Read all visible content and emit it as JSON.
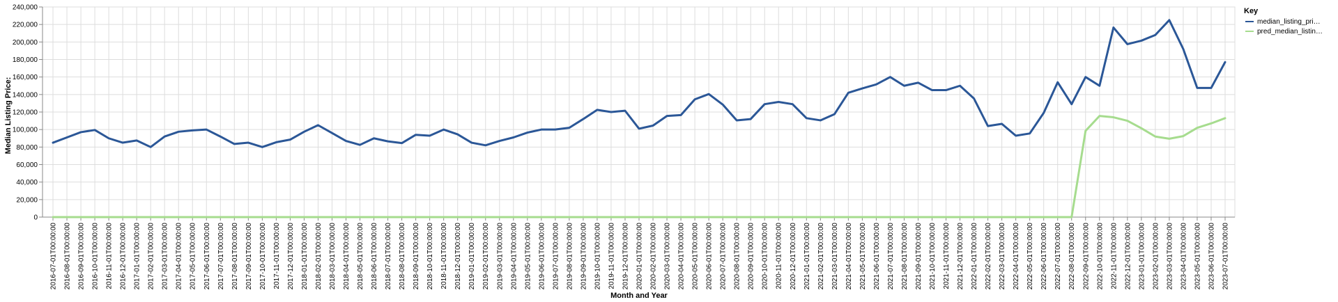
{
  "chart_data": {
    "type": "line",
    "xlabel": "Month and Year",
    "ylabel": "Median Listing Price:",
    "ylim": [
      0,
      240000
    ],
    "yticks": [
      "0",
      "20,000",
      "40,000",
      "60,000",
      "80,000",
      "100,000",
      "120,000",
      "140,000",
      "160,000",
      "180,000",
      "200,000",
      "220,000",
      "240,000"
    ],
    "grid": true,
    "legend_position": "right",
    "legend_title": "Key",
    "x": [
      "2016-07-01T00:00:00",
      "2016-08-01T00:00:00",
      "2016-09-01T00:00:00",
      "2016-10-01T00:00:00",
      "2016-11-01T00:00:00",
      "2016-12-01T00:00:00",
      "2017-01-01T00:00:00",
      "2017-02-01T00:00:00",
      "2017-03-01T00:00:00",
      "2017-04-01T00:00:00",
      "2017-05-01T00:00:00",
      "2017-06-01T00:00:00",
      "2017-07-01T00:00:00",
      "2017-08-01T00:00:00",
      "2017-09-01T00:00:00",
      "2017-10-01T00:00:00",
      "2017-11-01T00:00:00",
      "2017-12-01T00:00:00",
      "2018-01-01T00:00:00",
      "2018-02-01T00:00:00",
      "2018-03-01T00:00:00",
      "2018-04-01T00:00:00",
      "2018-05-01T00:00:00",
      "2018-06-01T00:00:00",
      "2018-07-01T00:00:00",
      "2018-08-01T00:00:00",
      "2018-09-01T00:00:00",
      "2018-10-01T00:00:00",
      "2018-11-01T00:00:00",
      "2018-12-01T00:00:00",
      "2019-01-01T00:00:00",
      "2019-02-01T00:00:00",
      "2019-03-01T00:00:00",
      "2019-04-01T00:00:00",
      "2019-05-01T00:00:00",
      "2019-06-01T00:00:00",
      "2019-07-01T00:00:00",
      "2019-08-01T00:00:00",
      "2019-09-01T00:00:00",
      "2019-10-01T00:00:00",
      "2019-11-01T00:00:00",
      "2019-12-01T00:00:00",
      "2020-01-01T00:00:00",
      "2020-02-01T00:00:00",
      "2020-03-01T00:00:00",
      "2020-04-01T00:00:00",
      "2020-05-01T00:00:00",
      "2020-06-01T00:00:00",
      "2020-07-01T00:00:00",
      "2020-08-01T00:00:00",
      "2020-09-01T00:00:00",
      "2020-10-01T00:00:00",
      "2020-11-01T00:00:00",
      "2020-12-01T00:00:00",
      "2021-01-01T00:00:00",
      "2021-02-01T00:00:00",
      "2021-03-01T00:00:00",
      "2021-04-01T00:00:00",
      "2021-05-01T00:00:00",
      "2021-06-01T00:00:00",
      "2021-07-01T00:00:00",
      "2021-08-01T00:00:00",
      "2021-09-01T00:00:00",
      "2021-10-01T00:00:00",
      "2021-11-01T00:00:00",
      "2021-12-01T00:00:00",
      "2022-01-01T00:00:00",
      "2022-02-01T00:00:00",
      "2022-03-01T00:00:00",
      "2022-04-01T00:00:00",
      "2022-05-01T00:00:00",
      "2022-06-01T00:00:00",
      "2022-07-01T00:00:00",
      "2022-08-01T00:00:00",
      "2022-09-01T00:00:00",
      "2022-10-01T00:00:00",
      "2022-11-01T00:00:00",
      "2022-12-01T00:00:00",
      "2023-01-01T00:00:00",
      "2023-02-01T00:00:00",
      "2023-03-01T00:00:00",
      "2023-04-01T00:00:00",
      "2023-05-01T00:00:00",
      "2023-06-01T00:00:00",
      "2023-07-01T00:00:00"
    ],
    "series": [
      {
        "name": "median_listing_pri…",
        "color": "#2b5797",
        "values": [
          85000,
          91000,
          97000,
          99500,
          90000,
          85000,
          87500,
          80000,
          92000,
          97500,
          99000,
          100000,
          92000,
          83500,
          85000,
          80000,
          85500,
          88500,
          97500,
          105000,
          96000,
          87000,
          82500,
          90000,
          86500,
          84500,
          94000,
          93000,
          100000,
          94500,
          85000,
          82000,
          87000,
          91000,
          96500,
          100000,
          100000,
          102000,
          112000,
          122500,
          120000,
          121500,
          101000,
          104500,
          115500,
          116500,
          134500,
          140500,
          128500,
          110500,
          112000,
          129000,
          131500,
          129000,
          113000,
          110500,
          117500,
          142000,
          147000,
          151500,
          160000,
          150000,
          153500,
          145000,
          145000,
          150000,
          135500,
          104000,
          106500,
          93000,
          95500,
          119000,
          154000,
          129000,
          160000,
          150000,
          216500,
          197500,
          201500,
          208000,
          225000,
          192000,
          147500,
          147500,
          177000
        ]
      },
      {
        "name": "pred_median_listin…",
        "color": "#a6dc8e",
        "values": [
          0,
          0,
          0,
          0,
          0,
          0,
          0,
          0,
          0,
          0,
          0,
          0,
          0,
          0,
          0,
          0,
          0,
          0,
          0,
          0,
          0,
          0,
          0,
          0,
          0,
          0,
          0,
          0,
          0,
          0,
          0,
          0,
          0,
          0,
          0,
          0,
          0,
          0,
          0,
          0,
          0,
          0,
          0,
          0,
          0,
          0,
          0,
          0,
          0,
          0,
          0,
          0,
          0,
          0,
          0,
          0,
          0,
          0,
          0,
          0,
          0,
          0,
          0,
          0,
          0,
          0,
          0,
          0,
          0,
          0,
          0,
          0,
          0,
          0,
          98500,
          115500,
          114000,
          110000,
          101500,
          92000,
          89500,
          92500,
          102000,
          107000,
          113000
        ]
      }
    ]
  }
}
